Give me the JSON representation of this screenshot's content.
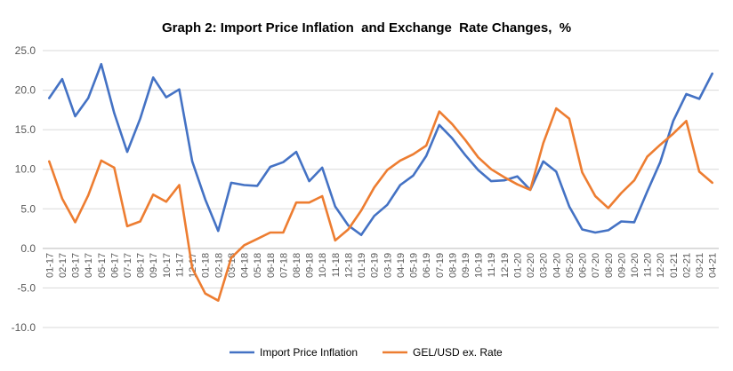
{
  "chart_data": {
    "type": "line",
    "title": "Graph 2: Import Price Inflation  and Exchange  Rate Changes,  %",
    "xlabel": "",
    "ylabel": "",
    "ylim": [
      -10,
      25
    ],
    "y_ticks": [
      "25.0",
      "20.0",
      "15.0",
      "10.0",
      "5.0",
      "0.0",
      "-5.0",
      "-10.0"
    ],
    "grid": true,
    "legend_position": "bottom",
    "categories": [
      "01-17",
      "02-17",
      "03-17",
      "04-17",
      "05-17",
      "06-17",
      "07-17",
      "08-17",
      "09-17",
      "10-17",
      "11-17",
      "12-17",
      "01-18",
      "02-18",
      "03-18",
      "04-18",
      "05-18",
      "06-18",
      "07-18",
      "08-18",
      "09-18",
      "10-18",
      "11-18",
      "12-18",
      "01-19",
      "02-19",
      "03-19",
      "04-19",
      "05-19",
      "06-19",
      "07-19",
      "08-19",
      "09-19",
      "10-19",
      "11-19",
      "12-19",
      "01-20",
      "02-20",
      "03-20",
      "04-20",
      "05-20",
      "06-20",
      "07-20",
      "08-20",
      "09-20",
      "10-20",
      "11-20",
      "12-20",
      "01-21",
      "02-21",
      "03-21",
      "04-21"
    ],
    "series": [
      {
        "name": "Import Price Inflation",
        "color": "#4472C4",
        "values": [
          19.0,
          21.4,
          16.7,
          19.0,
          23.3,
          17.1,
          12.2,
          16.4,
          21.6,
          19.1,
          20.1,
          11.0,
          6.2,
          2.2,
          8.3,
          8.0,
          7.9,
          10.3,
          10.9,
          12.2,
          8.5,
          10.2,
          5.3,
          2.9,
          1.7,
          4.1,
          5.5,
          8.0,
          9.2,
          11.7,
          15.6,
          13.9,
          11.8,
          9.9,
          8.5,
          8.6,
          9.1,
          7.4,
          11.0,
          9.7,
          5.3,
          2.4,
          2.0,
          2.3,
          3.4,
          3.3,
          7.2,
          10.9,
          16.1,
          19.5,
          18.9,
          22.1
        ]
      },
      {
        "name": "GEL/USD ex. Rate",
        "color": "#ED7D31",
        "values": [
          11.0,
          6.3,
          3.3,
          6.7,
          11.1,
          10.2,
          2.8,
          3.4,
          6.8,
          5.9,
          8.0,
          -2.5,
          -5.7,
          -6.6,
          -1.2,
          0.4,
          1.2,
          2.0,
          2.0,
          5.8,
          5.8,
          6.6,
          1.0,
          2.4,
          4.8,
          7.7,
          9.9,
          11.1,
          11.9,
          13.0,
          17.3,
          15.7,
          13.7,
          11.5,
          10.0,
          9.0,
          8.1,
          7.4,
          13.3,
          17.7,
          16.4,
          9.6,
          6.6,
          5.1,
          7.0,
          8.6,
          11.6,
          13.1,
          14.5,
          16.1,
          9.7,
          8.3
        ]
      }
    ]
  }
}
